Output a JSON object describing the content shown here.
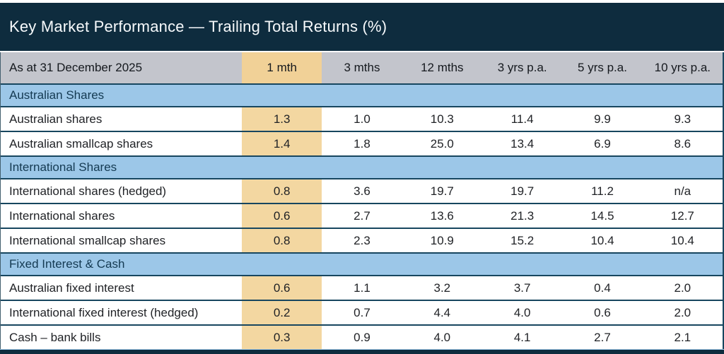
{
  "chart_data": {
    "type": "table",
    "title": "Key Market Performance — Trailing Total Returns (%)",
    "as_at": "As at 31 December 2025",
    "columns": [
      "1 mth",
      "3 mths",
      "12 mths",
      "3 yrs p.a.",
      "5 yrs p.a.",
      "10 yrs p.a."
    ],
    "highlighted_column": "1 mth",
    "sections": [
      {
        "header": "Australian Shares",
        "rows": [
          {
            "label": "Australian shares",
            "values": [
              "1.3",
              "1.0",
              "10.3",
              "11.4",
              "9.9",
              "9.3"
            ]
          },
          {
            "label": "Australian smallcap shares",
            "values": [
              "1.4",
              "1.8",
              "25.0",
              "13.4",
              "6.9",
              "8.6"
            ]
          }
        ]
      },
      {
        "header": "International Shares",
        "rows": [
          {
            "label": "International shares (hedged)",
            "values": [
              "0.8",
              "3.6",
              "19.7",
              "19.7",
              "11.2",
              "n/a"
            ]
          },
          {
            "label": "International shares",
            "values": [
              "0.6",
              "2.7",
              "13.6",
              "21.3",
              "14.5",
              "12.7"
            ]
          },
          {
            "label": "International smallcap shares",
            "values": [
              "0.8",
              "2.3",
              "10.9",
              "15.2",
              "10.4",
              "10.4"
            ]
          }
        ]
      },
      {
        "header": "Fixed Interest & Cash",
        "rows": [
          {
            "label": "Australian fixed interest",
            "values": [
              "0.6",
              "1.1",
              "3.2",
              "3.7",
              "0.4",
              "2.0"
            ]
          },
          {
            "label": "International fixed interest (hedged)",
            "values": [
              "0.2",
              "0.7",
              "4.4",
              "4.0",
              "0.6",
              "2.0"
            ]
          },
          {
            "label": "Cash – bank bills",
            "values": [
              "0.3",
              "0.9",
              "4.0",
              "4.1",
              "2.7",
              "2.1"
            ]
          }
        ]
      }
    ]
  },
  "colors": {
    "title_bar_bg": "#0e2c3e",
    "title_text": "#f7fafc",
    "header_row_bg": "#c3c5cc",
    "highlight_column_header_bg": "#f1d197",
    "highlight_cell_bg": "#f3d7a1",
    "section_header_bg": "#9cc7e8",
    "section_header_text": "#143a52",
    "row_border": "#17465f",
    "body_text": "#1f2125"
  }
}
